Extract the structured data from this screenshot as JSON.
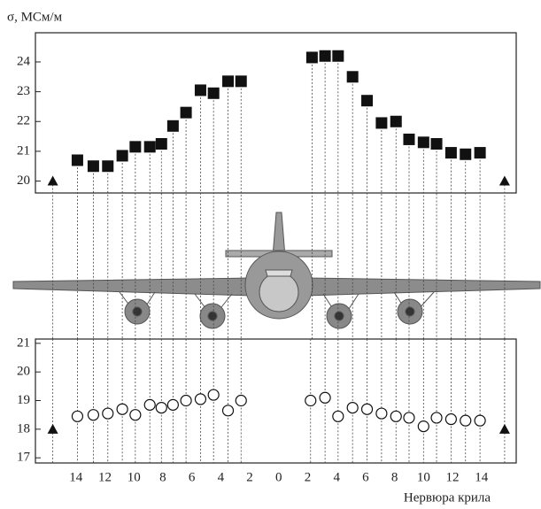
{
  "chart_data": [
    {
      "type": "scatter",
      "ylabel": "σ, МСм/м",
      "xlim": [
        -16.8,
        16.4
      ],
      "ylim": [
        19.6,
        24.98
      ],
      "yticks": [
        20,
        21,
        22,
        23,
        24
      ],
      "series": [
        {
          "marker": "square",
          "color": "#111111",
          "x": [
            -13.9,
            -12.8,
            -11.8,
            -10.8,
            -9.9,
            -8.9,
            -8.1,
            -7.3,
            -6.4,
            -5.4,
            -4.5,
            -3.5,
            -2.6,
            2.3,
            3.2,
            4.1,
            5.1,
            6.1,
            7.1,
            8.1,
            9.0,
            10.0,
            10.9,
            11.9,
            12.9,
            13.9
          ],
          "values": [
            20.7,
            20.5,
            20.5,
            20.85,
            21.15,
            21.15,
            21.25,
            21.85,
            22.3,
            23.05,
            22.95,
            23.35,
            23.35,
            24.15,
            24.2,
            24.2,
            23.5,
            22.7,
            21.95,
            22.0,
            21.4,
            21.3,
            21.25,
            20.95,
            20.9,
            20.95
          ]
        },
        {
          "marker": "triangle",
          "color": "#111111",
          "x": [
            -15.6,
            15.6
          ],
          "values": [
            20,
            20
          ]
        }
      ]
    },
    {
      "type": "scatter",
      "xlabel": "Нервюра крила",
      "xlim": [
        -16.8,
        16.4
      ],
      "ylim": [
        16.82,
        21.15
      ],
      "yticks": [
        17,
        18,
        19,
        20,
        21
      ],
      "xticks": [
        {
          "value": -14,
          "label": "14"
        },
        {
          "value": -12,
          "label": "12"
        },
        {
          "value": -10,
          "label": "10"
        },
        {
          "value": -8,
          "label": "8"
        },
        {
          "value": -6,
          "label": "6"
        },
        {
          "value": -4,
          "label": "4"
        },
        {
          "value": -2,
          "label": "2"
        },
        0,
        2,
        4,
        6,
        8,
        10,
        12,
        14
      ],
      "series": [
        {
          "marker": "circle",
          "color": "#111111",
          "x": [
            -13.9,
            -12.8,
            -11.8,
            -10.8,
            -9.9,
            -8.9,
            -8.1,
            -7.3,
            -6.4,
            -5.4,
            -4.5,
            -3.5,
            -2.6,
            2.2,
            3.2,
            4.1,
            5.1,
            6.1,
            7.1,
            8.1,
            9.0,
            10.0,
            10.9,
            11.9,
            12.9,
            13.9
          ],
          "values": [
            18.45,
            18.5,
            18.55,
            18.7,
            18.5,
            18.85,
            18.75,
            18.85,
            19.0,
            19.05,
            19.2,
            18.65,
            19.0,
            19.0,
            19.1,
            18.45,
            18.75,
            18.7,
            18.55,
            18.45,
            18.4,
            18.1,
            18.4,
            18.35,
            18.3,
            18.3
          ]
        },
        {
          "marker": "triangle",
          "color": "#111111",
          "x": [
            -15.6,
            15.6
          ],
          "values": [
            18,
            18
          ]
        }
      ]
    }
  ]
}
